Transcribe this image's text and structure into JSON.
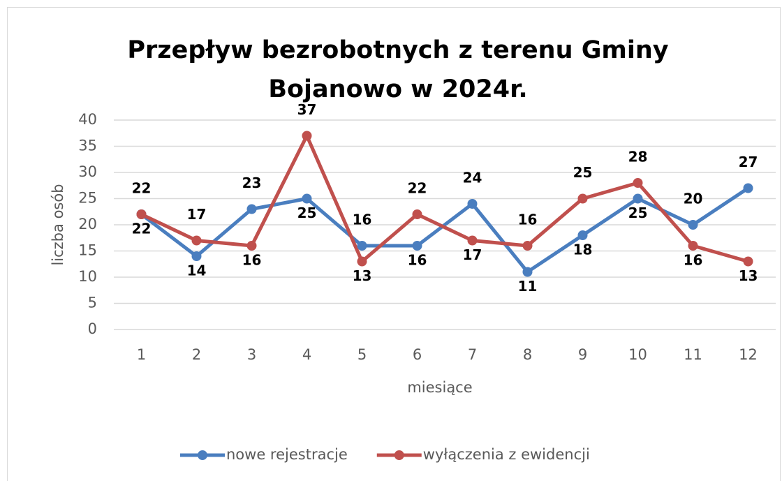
{
  "chart_data": {
    "type": "line",
    "title": "Przepływ bezrobotnych z terenu Gminy Bojanowo w 2024r.",
    "xlabel": "miesiące",
    "ylabel": "liczba osób",
    "categories": [
      "1",
      "2",
      "3",
      "4",
      "5",
      "6",
      "7",
      "8",
      "9",
      "10",
      "11",
      "12"
    ],
    "series": [
      {
        "name": "nowe rejestracje",
        "color": "#4a7ebf",
        "values": [
          22,
          14,
          23,
          25,
          16,
          16,
          24,
          11,
          18,
          25,
          20,
          27
        ]
      },
      {
        "name": "wyłączenia z ewidencji",
        "color": "#c0504d",
        "values": [
          22,
          17,
          16,
          37,
          13,
          22,
          17,
          16,
          25,
          28,
          16,
          13
        ]
      }
    ],
    "ylim": [
      0,
      40
    ],
    "yticks": [
      0,
      5,
      10,
      15,
      20,
      25,
      30,
      35,
      40
    ],
    "grid": true,
    "legend": "bottom"
  }
}
